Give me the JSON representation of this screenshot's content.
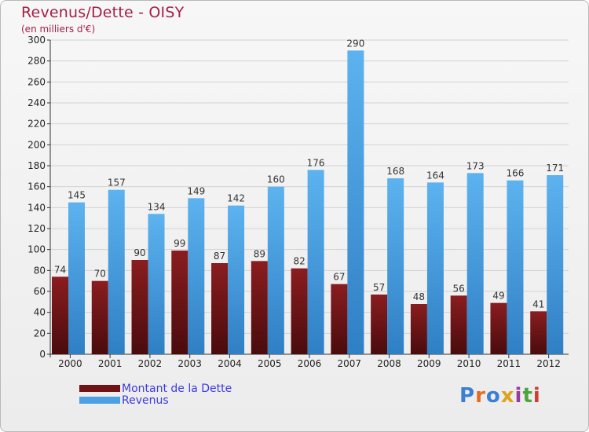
{
  "title": "Revenus/Dette - OISY",
  "subtitle": "(en milliers d'€)",
  "legend": [
    {
      "label": "Montant de la Dette",
      "color": "#6e1416"
    },
    {
      "label": "Revenus",
      "color": "#4aa0e2"
    }
  ],
  "brand": "Proxiti",
  "brand_colors": [
    "#3b7fd4",
    "#e56a21",
    "#3b7fd4",
    "#e0a21b",
    "#9a3c9e",
    "#4aa53c",
    "#d63b2e"
  ],
  "chart_data": {
    "type": "bar",
    "categories": [
      "2000",
      "2001",
      "2002",
      "2003",
      "2004",
      "2005",
      "2006",
      "2007",
      "2008",
      "2009",
      "2010",
      "2011",
      "2012"
    ],
    "series": [
      {
        "name": "Montant de la Dette",
        "values": [
          74,
          70,
          90,
          99,
          87,
          89,
          82,
          67,
          57,
          48,
          56,
          49,
          41
        ],
        "color": "#6e1416"
      },
      {
        "name": "Revenus",
        "values": [
          145,
          157,
          134,
          149,
          142,
          160,
          176,
          290,
          168,
          164,
          173,
          166,
          171
        ],
        "color": "#4aa0e2"
      }
    ],
    "yticks": [
      0,
      20,
      40,
      60,
      80,
      100,
      120,
      140,
      160,
      180,
      200,
      220,
      240,
      260,
      280,
      300
    ],
    "ylim": [
      0,
      300
    ],
    "grid": true,
    "legend_position": "bottom-left"
  }
}
